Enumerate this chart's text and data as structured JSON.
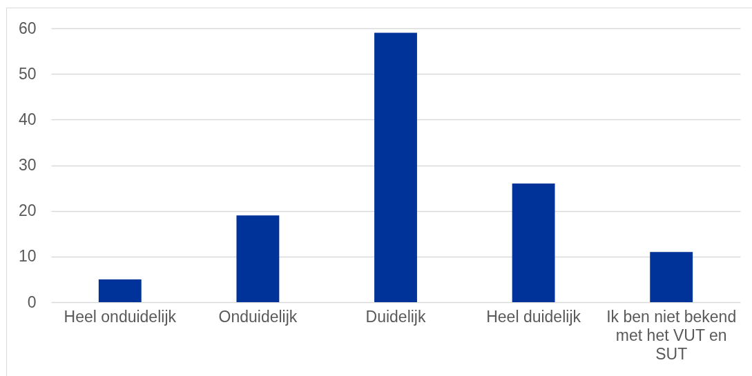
{
  "chart_data": {
    "type": "bar",
    "categories": [
      "Heel onduidelijk",
      "Onduidelijk",
      "Duidelijk",
      "Heel duidelijk",
      "Ik ben niet bekend met het VUT en SUT"
    ],
    "values": [
      5,
      19,
      59,
      26,
      11
    ],
    "color": "#003399",
    "ylim": [
      0,
      60
    ],
    "yticks": [
      0,
      10,
      20,
      30,
      40,
      50,
      60
    ],
    "grid": "y"
  }
}
